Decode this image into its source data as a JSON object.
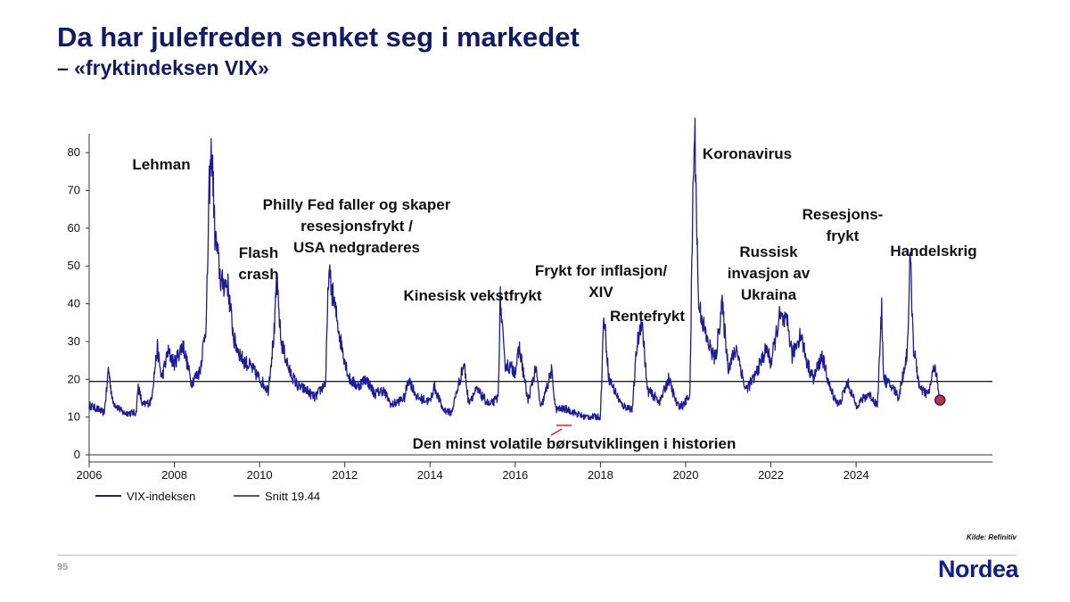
{
  "slide": {
    "title": "Da har julefreden senket seg i markedet",
    "subtitle": "– «fryktindeksen VIX»",
    "source": "Kilde: Refinitiv",
    "page_number": "95",
    "logo": "Nordea"
  },
  "colors": {
    "title": "#0f1a6b",
    "series": "#1b1aa0",
    "average": "#222222",
    "marker": "#c0392b",
    "logo": "#0d1f8c"
  },
  "chart_data": {
    "type": "line",
    "xlim": [
      2006,
      2027.2
    ],
    "ylim": [
      0,
      85
    ],
    "x_ticks": [
      "2006",
      "2008",
      "2010",
      "2012",
      "2014",
      "2016",
      "2018",
      "2020",
      "2022",
      "2024"
    ],
    "y_ticks": [
      "0",
      "10",
      "20",
      "30",
      "40",
      "50",
      "60",
      "70",
      "80"
    ],
    "grid": false,
    "legend_position": "bottom-left",
    "series": [
      {
        "name": "VIX-indeksen",
        "points": [
          [
            2006.0,
            13
          ],
          [
            2006.2,
            12
          ],
          [
            2006.35,
            11
          ],
          [
            2006.42,
            18
          ],
          [
            2006.45,
            23
          ],
          [
            2006.55,
            14
          ],
          [
            2006.8,
            11
          ],
          [
            2007.0,
            11
          ],
          [
            2007.1,
            11
          ],
          [
            2007.15,
            18
          ],
          [
            2007.25,
            13
          ],
          [
            2007.45,
            14
          ],
          [
            2007.6,
            28
          ],
          [
            2007.7,
            20
          ],
          [
            2007.85,
            27
          ],
          [
            2008.0,
            24
          ],
          [
            2008.2,
            29
          ],
          [
            2008.4,
            19
          ],
          [
            2008.6,
            22
          ],
          [
            2008.75,
            35
          ],
          [
            2008.82,
            70
          ],
          [
            2008.88,
            81
          ],
          [
            2008.95,
            58
          ],
          [
            2009.1,
            45
          ],
          [
            2009.25,
            45
          ],
          [
            2009.4,
            30
          ],
          [
            2009.6,
            25
          ],
          [
            2009.8,
            23
          ],
          [
            2010.0,
            20
          ],
          [
            2010.2,
            17
          ],
          [
            2010.35,
            33
          ],
          [
            2010.4,
            46
          ],
          [
            2010.5,
            30
          ],
          [
            2010.7,
            22
          ],
          [
            2010.9,
            18
          ],
          [
            2011.1,
            17
          ],
          [
            2011.3,
            15
          ],
          [
            2011.55,
            19
          ],
          [
            2011.62,
            48
          ],
          [
            2011.75,
            40
          ],
          [
            2011.9,
            30
          ],
          [
            2012.1,
            20
          ],
          [
            2012.3,
            18
          ],
          [
            2012.5,
            20
          ],
          [
            2012.7,
            16
          ],
          [
            2012.9,
            17
          ],
          [
            2013.1,
            13
          ],
          [
            2013.4,
            15
          ],
          [
            2013.5,
            20
          ],
          [
            2013.7,
            15
          ],
          [
            2014.0,
            14
          ],
          [
            2014.1,
            18
          ],
          [
            2014.3,
            12
          ],
          [
            2014.5,
            11
          ],
          [
            2014.8,
            24
          ],
          [
            2014.9,
            14
          ],
          [
            2015.1,
            17
          ],
          [
            2015.4,
            13
          ],
          [
            2015.6,
            15
          ],
          [
            2015.65,
            41
          ],
          [
            2015.75,
            24
          ],
          [
            2016.0,
            22
          ],
          [
            2016.1,
            28
          ],
          [
            2016.3,
            14
          ],
          [
            2016.48,
            23
          ],
          [
            2016.6,
            12
          ],
          [
            2016.85,
            22
          ],
          [
            2016.95,
            12
          ],
          [
            2017.2,
            12
          ],
          [
            2017.4,
            11
          ],
          [
            2017.6,
            10
          ],
          [
            2017.8,
            10
          ],
          [
            2018.0,
            10
          ],
          [
            2018.08,
            37
          ],
          [
            2018.2,
            20
          ],
          [
            2018.5,
            13
          ],
          [
            2018.75,
            12
          ],
          [
            2018.85,
            28
          ],
          [
            2018.97,
            36
          ],
          [
            2019.1,
            17
          ],
          [
            2019.4,
            14
          ],
          [
            2019.6,
            20
          ],
          [
            2019.8,
            13
          ],
          [
            2019.95,
            13
          ],
          [
            2020.1,
            16
          ],
          [
            2020.18,
            75
          ],
          [
            2020.22,
            83
          ],
          [
            2020.3,
            40
          ],
          [
            2020.5,
            30
          ],
          [
            2020.7,
            25
          ],
          [
            2020.85,
            40
          ],
          [
            2021.0,
            23
          ],
          [
            2021.2,
            28
          ],
          [
            2021.4,
            17
          ],
          [
            2021.6,
            20
          ],
          [
            2021.9,
            28
          ],
          [
            2022.0,
            24
          ],
          [
            2022.2,
            36
          ],
          [
            2022.4,
            34
          ],
          [
            2022.5,
            26
          ],
          [
            2022.7,
            32
          ],
          [
            2022.85,
            24
          ],
          [
            2023.0,
            20
          ],
          [
            2023.2,
            26
          ],
          [
            2023.4,
            17
          ],
          [
            2023.6,
            13
          ],
          [
            2023.8,
            19
          ],
          [
            2024.0,
            13
          ],
          [
            2024.3,
            16
          ],
          [
            2024.5,
            13
          ],
          [
            2024.6,
            38
          ],
          [
            2024.65,
            20
          ],
          [
            2024.9,
            17
          ],
          [
            2025.0,
            15
          ],
          [
            2025.2,
            27
          ],
          [
            2025.27,
            52
          ],
          [
            2025.35,
            28
          ],
          [
            2025.5,
            17
          ],
          [
            2025.7,
            16
          ],
          [
            2025.85,
            24
          ],
          [
            2025.95,
            15
          ]
        ]
      },
      {
        "name": "Snitt 19.44",
        "value": 19.44
      }
    ],
    "last_point": [
      2025.97,
      14.5
    ],
    "annotations": [
      {
        "lines": [
          "Lehman"
        ]
      },
      {
        "lines": [
          "Flash",
          "crash"
        ]
      },
      {
        "lines": [
          "Philly Fed faller og skaper",
          "resesjonsfrykt /",
          "USA nedgraderes"
        ]
      },
      {
        "lines": [
          "Kinesisk vekstfrykt"
        ]
      },
      {
        "lines": [
          "Frykt for inflasjon/",
          "XIV"
        ]
      },
      {
        "lines": [
          "Rentefrykt"
        ]
      },
      {
        "lines": [
          "Koronavirus"
        ]
      },
      {
        "lines": [
          "Russisk",
          "invasjon av",
          "Ukraina"
        ]
      },
      {
        "lines": [
          "Resesjons-",
          "frykt"
        ]
      },
      {
        "lines": [
          "Handelskrig"
        ]
      },
      {
        "lines": [
          "Den minst volatile børsutviklingen i historien"
        ]
      }
    ]
  }
}
